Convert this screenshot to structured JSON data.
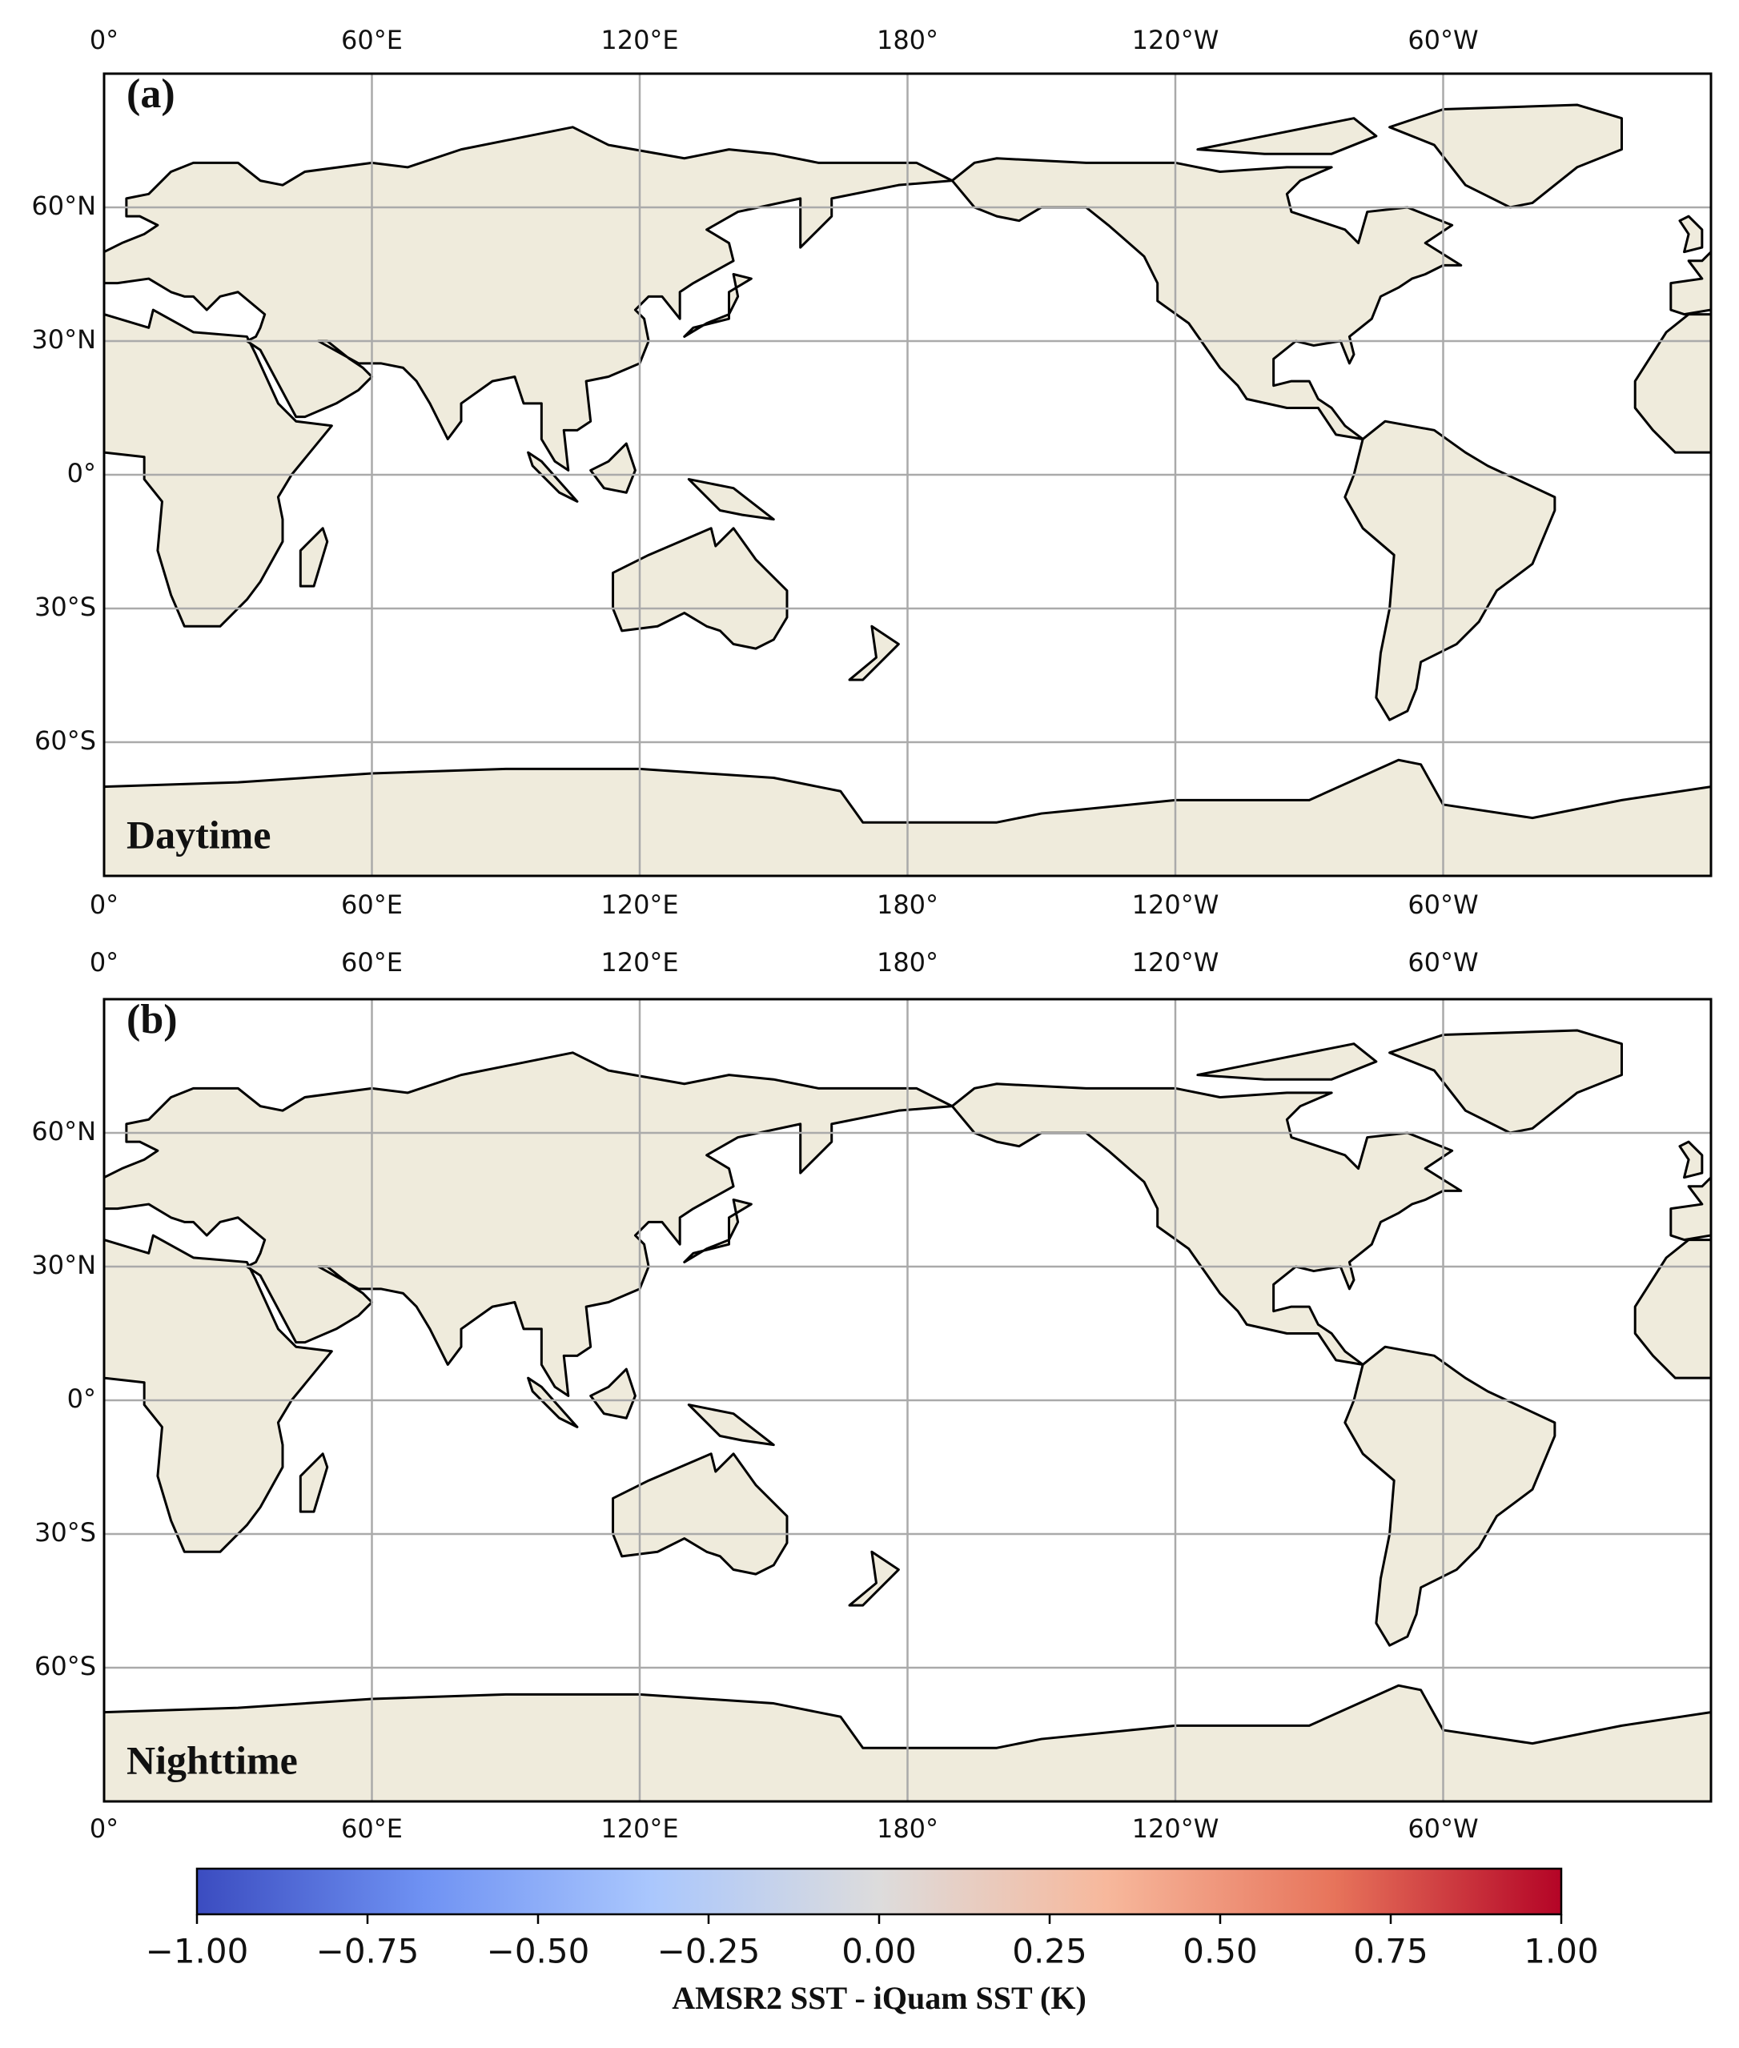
{
  "map": {
    "type": "map",
    "lon_range": [
      0,
      360
    ],
    "lat_range": [
      -90,
      90
    ],
    "lon_ticks": [
      {
        "value": 0,
        "label": "0°"
      },
      {
        "value": 60,
        "label": "60°E"
      },
      {
        "value": 120,
        "label": "120°E"
      },
      {
        "value": 180,
        "label": "180°"
      },
      {
        "value": 240,
        "label": "120°W"
      },
      {
        "value": 300,
        "label": "60°W"
      }
    ],
    "lat_ticks": [
      {
        "value": 60,
        "label": "60°N"
      },
      {
        "value": 30,
        "label": "30°N"
      },
      {
        "value": 0,
        "label": "0°"
      },
      {
        "value": -30,
        "label": "30°S"
      },
      {
        "value": -60,
        "label": "60°S"
      }
    ],
    "grid": true,
    "land_color": "#efebdc",
    "panels": [
      {
        "label": "(a)",
        "caption": "Daytime"
      },
      {
        "label": "(b)",
        "caption": "Nighttime"
      }
    ],
    "colorbar": {
      "label": "AMSR2 SST - iQuam SST (K)",
      "range": [
        -1,
        1
      ],
      "colors": [
        "#3b4cc0",
        "#6f92f3",
        "#aac7fd",
        "#dddcdc",
        "#f7b89c",
        "#e7745b",
        "#b40426"
      ],
      "ticks": [
        {
          "value": -1,
          "label": "−1.00"
        },
        {
          "value": -0.75,
          "label": "−0.75"
        },
        {
          "value": -0.5,
          "label": "−0.50"
        },
        {
          "value": -0.25,
          "label": "−0.25"
        },
        {
          "value": 0,
          "label": "0.00"
        },
        {
          "value": 0.25,
          "label": "0.25"
        },
        {
          "value": 0.5,
          "label": "0.50"
        },
        {
          "value": 0.75,
          "label": "0.75"
        },
        {
          "value": 1,
          "label": "1.00"
        }
      ]
    }
  }
}
